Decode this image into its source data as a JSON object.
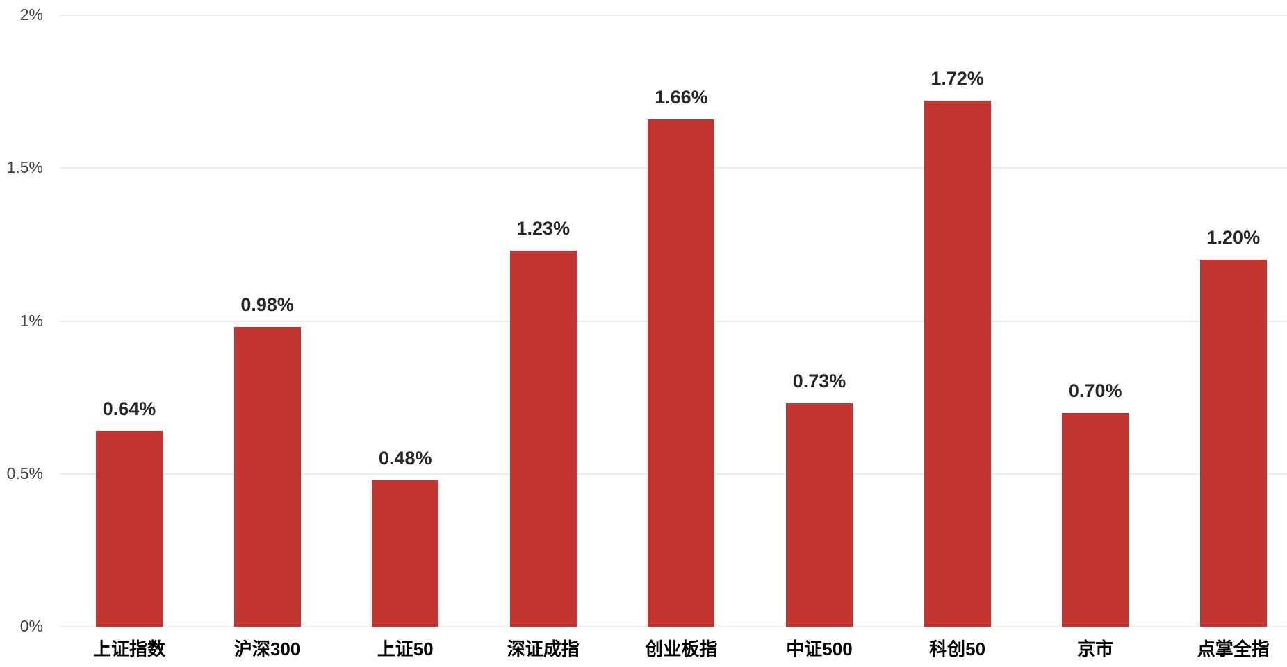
{
  "chart_data": {
    "type": "bar",
    "categories": [
      "上证指数",
      "沪深300",
      "上证50",
      "深证成指",
      "创业板指",
      "中证500",
      "科创50",
      "京市",
      "点掌全指"
    ],
    "values": [
      0.64,
      0.98,
      0.48,
      1.23,
      1.66,
      0.73,
      1.72,
      0.7,
      1.2
    ],
    "data_labels": [
      "0.64%",
      "0.98%",
      "0.48%",
      "1.23%",
      "1.66%",
      "0.73%",
      "1.72%",
      "0.70%",
      "1.20%"
    ],
    "title": "",
    "xlabel": "",
    "ylabel": "",
    "ylim": [
      0,
      2
    ],
    "y_ticks": [
      {
        "value": 0,
        "label": "0%"
      },
      {
        "value": 0.5,
        "label": "0.5%"
      },
      {
        "value": 1,
        "label": "1%"
      },
      {
        "value": 1.5,
        "label": "1.5%"
      },
      {
        "value": 2,
        "label": "2%"
      }
    ],
    "grid": true,
    "legend": false,
    "colors": {
      "bar": "#c23531",
      "gridline": "#ececec",
      "data_label": "#262626",
      "axis_tick_label": "#404040",
      "category_label": "#000000"
    }
  }
}
